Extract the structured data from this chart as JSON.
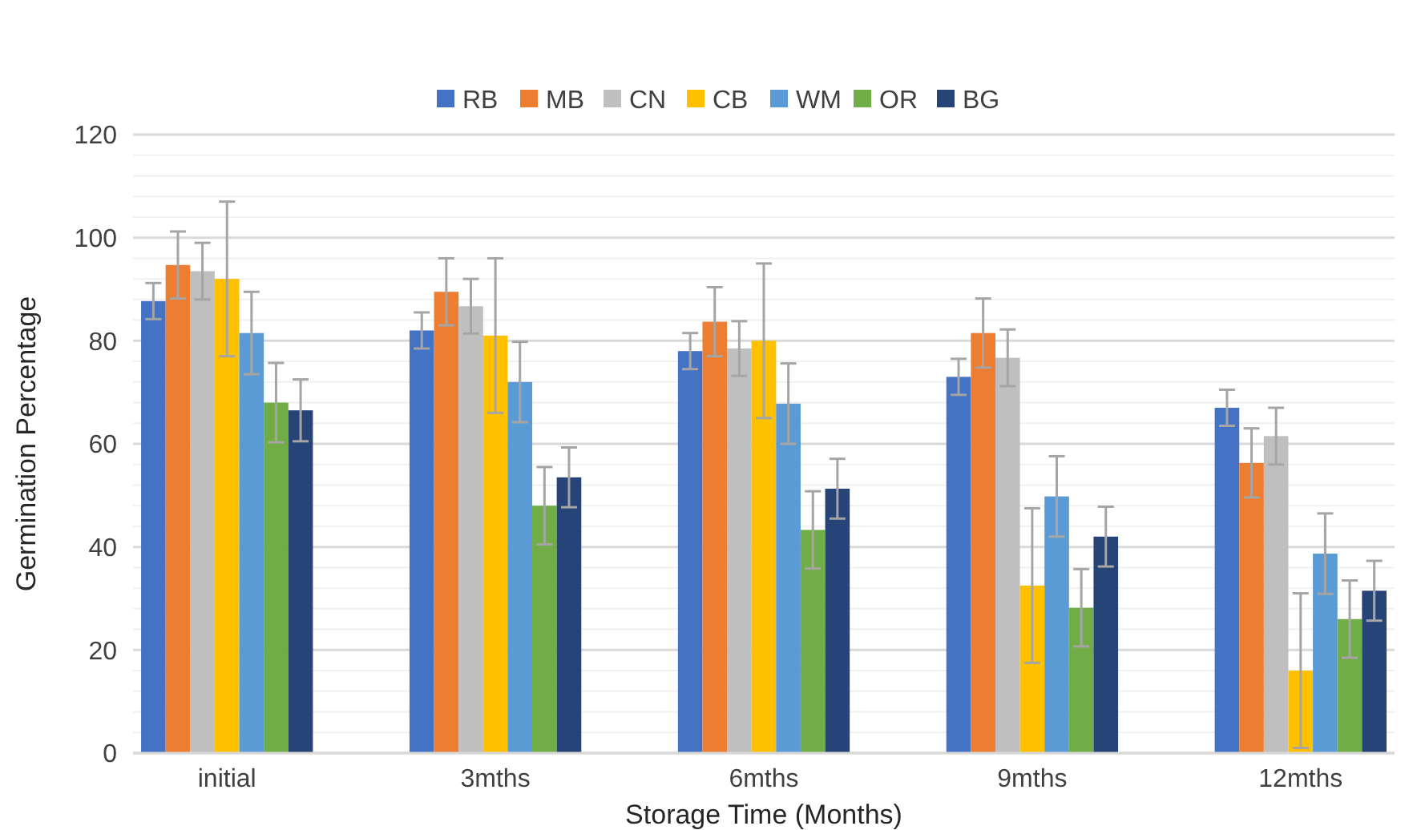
{
  "chart_data": {
    "type": "bar",
    "xlabel": "Storage Time (Months)",
    "ylabel": "Germination Percentage",
    "categories": [
      "initial",
      "3mths",
      "6mths",
      "9mths",
      "12mths"
    ],
    "series": [
      {
        "name": "RB",
        "color": "#4472c4",
        "values": [
          87.7,
          82,
          78,
          73,
          67
        ],
        "errors": [
          3.5,
          3.5,
          3.5,
          3.5,
          3.5
        ]
      },
      {
        "name": "MB",
        "color": "#ed7d31",
        "values": [
          94.7,
          89.5,
          83.7,
          81.5,
          56.3
        ],
        "errors": [
          6.5,
          6.5,
          6.7,
          6.7,
          6.7
        ]
      },
      {
        "name": "CN",
        "color": "#bfbfbf",
        "values": [
          93.5,
          86.7,
          78.5,
          76.7,
          61.5
        ],
        "errors": [
          5.5,
          5.3,
          5.3,
          5.5,
          5.5
        ]
      },
      {
        "name": "CB",
        "color": "#ffc000",
        "values": [
          92,
          81,
          80,
          32.5,
          16
        ],
        "errors": [
          15,
          15,
          15,
          15,
          15
        ]
      },
      {
        "name": "WM",
        "color": "#5b9bd5",
        "values": [
          81.5,
          72,
          67.8,
          49.8,
          38.7
        ],
        "errors": [
          8,
          7.8,
          7.8,
          7.8,
          7.8
        ]
      },
      {
        "name": "OR",
        "color": "#70ad47",
        "values": [
          68,
          48,
          43.3,
          28.2,
          26
        ],
        "errors": [
          7.7,
          7.5,
          7.5,
          7.5,
          7.5
        ]
      },
      {
        "name": "BG",
        "color": "#264478",
        "values": [
          66.5,
          53.5,
          51.3,
          42,
          31.5
        ],
        "errors": [
          6,
          5.8,
          5.8,
          5.8,
          5.8
        ]
      }
    ],
    "ylim": [
      0,
      120
    ],
    "yticks": [
      0,
      {
        "value": 4,
        "label": null
      },
      {
        "value": 8,
        "label": null
      },
      {
        "value": 12,
        "label": null
      },
      {
        "value": 16,
        "label": null
      },
      20,
      {
        "value": 24,
        "label": null
      },
      {
        "value": 28,
        "label": null
      },
      {
        "value": 32,
        "label": null
      },
      {
        "value": 36,
        "label": null
      },
      40,
      {
        "value": 44,
        "label": null
      },
      {
        "value": 48,
        "label": null
      },
      {
        "value": 52,
        "label": null
      },
      {
        "value": 56,
        "label": null
      },
      60,
      {
        "value": 64,
        "label": null
      },
      {
        "value": 68,
        "label": null
      },
      {
        "value": 72,
        "label": null
      },
      {
        "value": 76,
        "label": null
      },
      80,
      {
        "value": 84,
        "label": null
      },
      {
        "value": 88,
        "label": null
      },
      {
        "value": 92,
        "label": null
      },
      {
        "value": 96,
        "label": null
      },
      100,
      {
        "value": 104,
        "label": null
      },
      {
        "value": 108,
        "label": null
      },
      {
        "value": 112,
        "label": null
      },
      {
        "value": 116,
        "label": null
      },
      120
    ],
    "grid": "y",
    "legend": "top"
  }
}
